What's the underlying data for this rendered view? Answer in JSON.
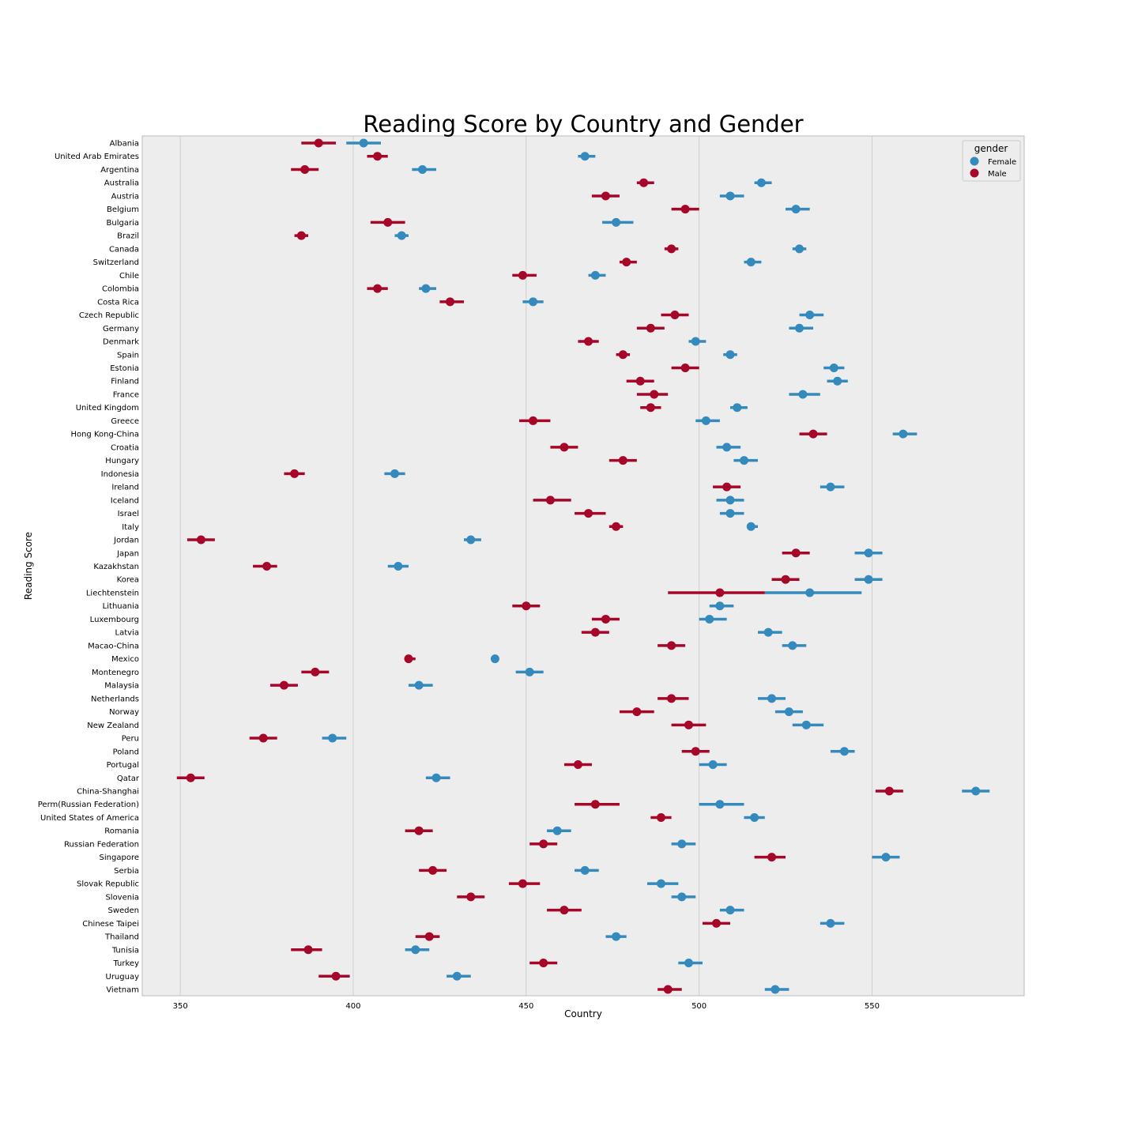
{
  "chart_data": {
    "type": "scatter",
    "title": "Reading Score by Country and Gender",
    "xlabel": "Country",
    "ylabel": "Reading Score",
    "xlim": [
      339,
      594
    ],
    "xticks": [
      350,
      400,
      450,
      500,
      550
    ],
    "grid": "vertical",
    "legend": {
      "title": "gender",
      "placement": "top-right"
    },
    "categories": [
      "Albania",
      "United Arab Emirates",
      "Argentina",
      "Australia",
      "Austria",
      "Belgium",
      "Bulgaria",
      "Brazil",
      "Canada",
      "Switzerland",
      "Chile",
      "Colombia",
      "Costa Rica",
      "Czech Republic",
      "Germany",
      "Denmark",
      "Spain",
      "Estonia",
      "Finland",
      "France",
      "United Kingdom",
      "Greece",
      "Hong Kong-China",
      "Croatia",
      "Hungary",
      "Indonesia",
      "Ireland",
      "Iceland",
      "Israel",
      "Italy",
      "Jordan",
      "Japan",
      "Kazakhstan",
      "Korea",
      "Liechtenstein",
      "Lithuania",
      "Luxembourg",
      "Latvia",
      "Macao-China",
      "Mexico",
      "Montenegro",
      "Malaysia",
      "Netherlands",
      "Norway",
      "New Zealand",
      "Peru",
      "Poland",
      "Portugal",
      "Qatar",
      "China-Shanghai",
      "Perm(Russian Federation)",
      "United States of America",
      "Romania",
      "Russian Federation",
      "Singapore",
      "Serbia",
      "Slovak Republic",
      "Slovenia",
      "Sweden",
      "Chinese Taipei",
      "Thailand",
      "Tunisia",
      "Turkey",
      "Uruguay",
      "Vietnam"
    ],
    "series": [
      {
        "name": "Female",
        "color": "#348ABD",
        "values": [
          403,
          467,
          420,
          518,
          509,
          528,
          476,
          414,
          529,
          515,
          470,
          421,
          452,
          532,
          529,
          499,
          509,
          539,
          540,
          530,
          511,
          502,
          559,
          508,
          513,
          412,
          538,
          509,
          509,
          515,
          434,
          549,
          413,
          549,
          532,
          506,
          503,
          520,
          527,
          441,
          451,
          419,
          521,
          526,
          531,
          394,
          542,
          504,
          424,
          580,
          506,
          516,
          459,
          495,
          554,
          467,
          489,
          495,
          509,
          538,
          476,
          418,
          497,
          430,
          522
        ],
        "ci": [
          [
            398,
            408
          ],
          [
            465,
            470
          ],
          [
            417,
            424
          ],
          [
            516,
            521
          ],
          [
            506,
            513
          ],
          [
            525,
            532
          ],
          [
            472,
            481
          ],
          [
            412,
            416
          ],
          [
            527,
            531
          ],
          [
            513,
            518
          ],
          [
            468,
            473
          ],
          [
            419,
            424
          ],
          [
            449,
            455
          ],
          [
            529,
            536
          ],
          [
            526,
            533
          ],
          [
            497,
            502
          ],
          [
            507,
            511
          ],
          [
            536,
            542
          ],
          [
            537,
            543
          ],
          [
            526,
            535
          ],
          [
            509,
            514
          ],
          [
            499,
            506
          ],
          [
            556,
            563
          ],
          [
            505,
            512
          ],
          [
            510,
            517
          ],
          [
            409,
            415
          ],
          [
            535,
            542
          ],
          [
            505,
            513
          ],
          [
            506,
            513
          ],
          [
            514,
            517
          ],
          [
            432,
            437
          ],
          [
            545,
            553
          ],
          [
            410,
            416
          ],
          [
            545,
            553
          ],
          [
            519,
            547
          ],
          [
            503,
            510
          ],
          [
            500,
            508
          ],
          [
            517,
            524
          ],
          [
            524,
            531
          ],
          [
            440,
            442
          ],
          [
            447,
            455
          ],
          [
            416,
            423
          ],
          [
            517,
            525
          ],
          [
            522,
            530
          ],
          [
            527,
            536
          ],
          [
            391,
            398
          ],
          [
            538,
            545
          ],
          [
            500,
            508
          ],
          [
            421,
            428
          ],
          [
            576,
            584
          ],
          [
            500,
            513
          ],
          [
            513,
            519
          ],
          [
            456,
            463
          ],
          [
            492,
            499
          ],
          [
            550,
            558
          ],
          [
            464,
            471
          ],
          [
            485,
            494
          ],
          [
            492,
            499
          ],
          [
            506,
            513
          ],
          [
            535,
            542
          ],
          [
            473,
            479
          ],
          [
            415,
            422
          ],
          [
            494,
            501
          ],
          [
            427,
            434
          ],
          [
            519,
            526
          ]
        ]
      },
      {
        "name": "Male",
        "color": "#A60628",
        "values": [
          390,
          407,
          386,
          484,
          473,
          496,
          410,
          385,
          492,
          479,
          449,
          407,
          428,
          493,
          486,
          468,
          478,
          496,
          483,
          487,
          486,
          452,
          533,
          461,
          478,
          383,
          508,
          457,
          468,
          476,
          356,
          528,
          375,
          525,
          506,
          450,
          473,
          470,
          492,
          416,
          389,
          380,
          492,
          482,
          497,
          374,
          499,
          465,
          353,
          555,
          470,
          489,
          419,
          455,
          521,
          423,
          449,
          434,
          461,
          505,
          422,
          387,
          455,
          395,
          491
        ],
        "ci": [
          [
            385,
            395
          ],
          [
            404,
            410
          ],
          [
            382,
            390
          ],
          [
            482,
            487
          ],
          [
            469,
            477
          ],
          [
            492,
            500
          ],
          [
            405,
            415
          ],
          [
            383,
            387
          ],
          [
            490,
            494
          ],
          [
            477,
            482
          ],
          [
            446,
            453
          ],
          [
            404,
            410
          ],
          [
            425,
            432
          ],
          [
            489,
            497
          ],
          [
            482,
            490
          ],
          [
            465,
            471
          ],
          [
            476,
            480
          ],
          [
            492,
            500
          ],
          [
            479,
            487
          ],
          [
            482,
            491
          ],
          [
            483,
            489
          ],
          [
            448,
            457
          ],
          [
            529,
            537
          ],
          [
            457,
            465
          ],
          [
            474,
            482
          ],
          [
            380,
            386
          ],
          [
            504,
            512
          ],
          [
            452,
            463
          ],
          [
            464,
            473
          ],
          [
            474,
            478
          ],
          [
            352,
            360
          ],
          [
            524,
            532
          ],
          [
            371,
            378
          ],
          [
            521,
            529
          ],
          [
            491,
            519
          ],
          [
            446,
            454
          ],
          [
            469,
            477
          ],
          [
            466,
            474
          ],
          [
            488,
            496
          ],
          [
            415,
            418
          ],
          [
            385,
            393
          ],
          [
            376,
            384
          ],
          [
            488,
            497
          ],
          [
            477,
            487
          ],
          [
            492,
            502
          ],
          [
            370,
            378
          ],
          [
            495,
            503
          ],
          [
            461,
            469
          ],
          [
            349,
            357
          ],
          [
            551,
            559
          ],
          [
            464,
            477
          ],
          [
            486,
            492
          ],
          [
            415,
            423
          ],
          [
            451,
            459
          ],
          [
            516,
            525
          ],
          [
            419,
            427
          ],
          [
            445,
            454
          ],
          [
            430,
            438
          ],
          [
            456,
            466
          ],
          [
            501,
            509
          ],
          [
            418,
            425
          ],
          [
            382,
            391
          ],
          [
            451,
            459
          ],
          [
            390,
            399
          ],
          [
            488,
            495
          ]
        ]
      }
    ]
  }
}
